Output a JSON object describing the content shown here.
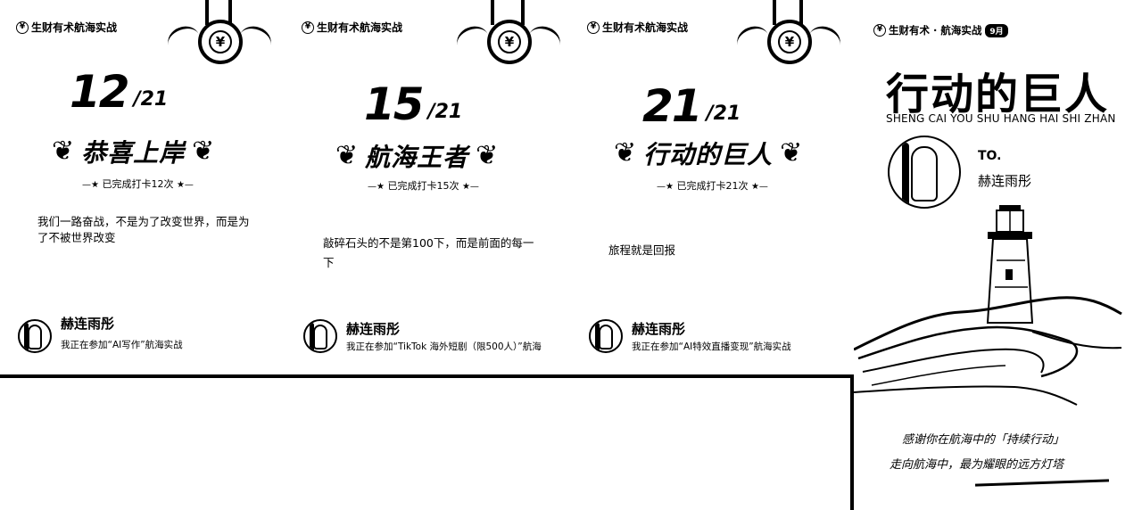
{
  "brand": {
    "logo": "¥",
    "name": "生财有术航海实战"
  },
  "cards": [
    {
      "count": "12",
      "total": "/21",
      "title": "恭喜上岸",
      "done": "已完成打卡12次",
      "quote": "我们一路奋战，不是为了改变世界，而是为了不被世界改变",
      "user_name": "赫连雨彤",
      "user_status": "我正在参加“AI写作”航海实战"
    },
    {
      "count": "15",
      "total": "/21",
      "title": "航海王者",
      "done": "已完成打卡15次",
      "quote": "敲碎石头的不是第100下，而是前面的每一下",
      "user_name": "赫连雨彤",
      "user_status": "我正在参加“TikTok 海外短剧（限500人）”航海"
    },
    {
      "count": "21",
      "total": "/21",
      "title": "行动的巨人",
      "done": "已完成打卡21次",
      "quote": "旅程就是回报",
      "user_name": "赫连雨彤",
      "user_status": "我正在参加“AI特效直播变现”航海实战"
    }
  ],
  "poster": {
    "brand": "生财有术 · 航海实战",
    "month": "9月",
    "title": "行动的巨人",
    "pinyin": "SHENG CAI YOU SHU HANG HAI SHI ZHAN",
    "to_label": "TO.",
    "to_name": "赫连雨彤",
    "thanks_line1": "感谢你在航海中的「持续行动」",
    "thanks_line2": "走向航海中，最为耀眼的远方灯塔"
  },
  "deco": {
    "laurel_left": "❦",
    "laurel_right": "❦",
    "star_left": "—★",
    "star_right": "★—"
  }
}
